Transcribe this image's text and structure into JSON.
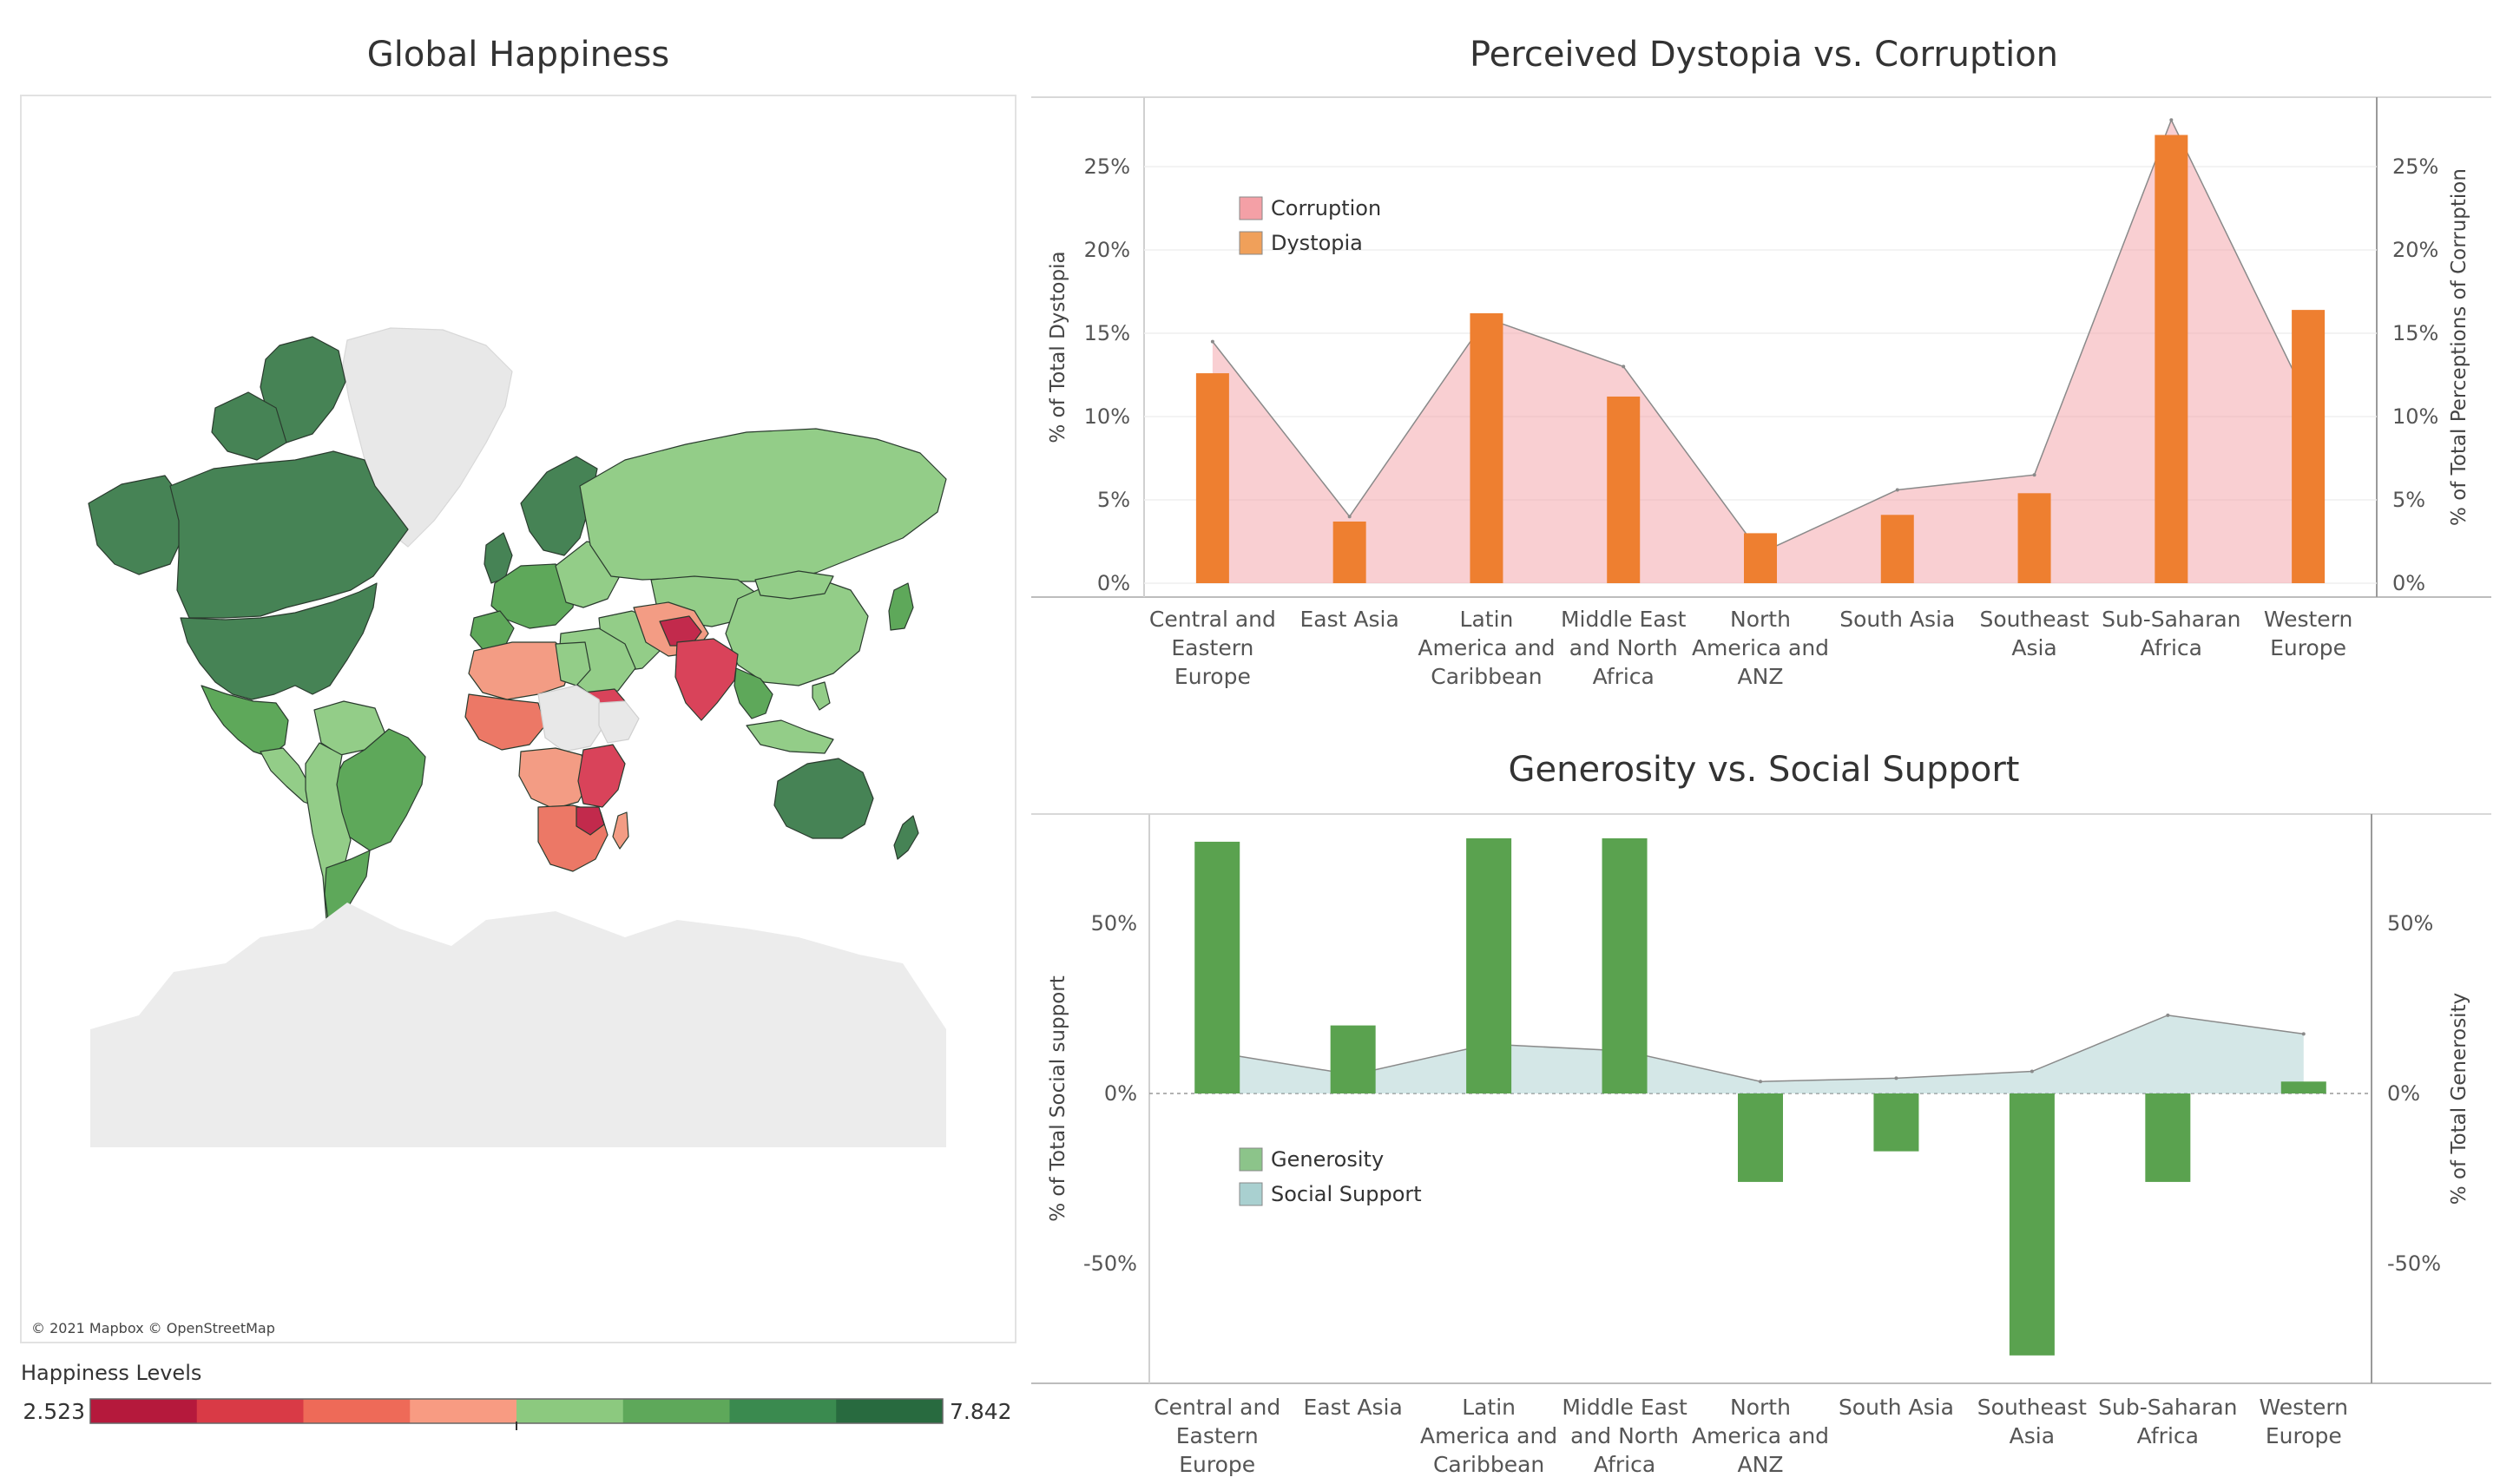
{
  "map": {
    "title": "Global Happiness",
    "attribution": "© 2021 Mapbox © OpenStreetMap",
    "legend": {
      "title": "Happiness Levels",
      "min_label": "2.523",
      "max_label": "7.842",
      "colors": [
        "#b5193c",
        "#d93a46",
        "#ee6a58",
        "#f89b82",
        "#8cc97f",
        "#5ea85a",
        "#3a8a4f",
        "#286a3f"
      ]
    },
    "colors": {
      "land_no_data": "#e8e8e8",
      "dark_green": "#468355",
      "mid_green": "#5ea85a",
      "light_green": "#93cd88",
      "salmon": "#f39c84",
      "coral": "#ec7866",
      "red": "#d9435a",
      "dark_red": "#c22a4c"
    }
  },
  "chart_data": [
    {
      "type": "bar",
      "title": "Perceived Dystopia vs. Corruption",
      "categories": [
        "Central and Eastern Europe",
        "East Asia",
        "Latin America and Caribbean",
        "Middle East and North Africa",
        "North America and ANZ",
        "South Asia",
        "Southeast Asia",
        "Sub-Saharan Africa",
        "Western Europe"
      ],
      "category_lines": [
        [
          "Central and",
          "Eastern",
          "Europe"
        ],
        [
          "East Asia"
        ],
        [
          "Latin",
          "America and",
          "Caribbean"
        ],
        [
          "Middle East",
          "and North",
          "Africa"
        ],
        [
          "North",
          "America and",
          "ANZ"
        ],
        [
          "South Asia"
        ],
        [
          "Southeast",
          "Asia"
        ],
        [
          "Sub-Saharan",
          "Africa"
        ],
        [
          "Western",
          "Europe"
        ]
      ],
      "series": [
        {
          "name": "Corruption",
          "type": "area",
          "axis": "right",
          "color": "#f4a0a6",
          "values": [
            14.5,
            4.0,
            15.9,
            13.0,
            1.8,
            5.6,
            6.5,
            27.8,
            10.9
          ]
        },
        {
          "name": "Dystopia",
          "type": "bar",
          "axis": "left",
          "color": "#f0a05a",
          "bar_color": "#ee7f30",
          "values": [
            12.6,
            3.7,
            16.2,
            11.2,
            3.0,
            4.1,
            5.4,
            26.9,
            16.4
          ]
        }
      ],
      "ylabel": "% of Total Dystopia",
      "y2label": "% of Total Perceptions of Corruption",
      "ylim": [
        -0.8,
        29
      ],
      "y2lim": [
        -0.8,
        29
      ],
      "yticks": [
        0,
        5,
        10,
        15,
        20,
        25
      ],
      "ytick_labels": [
        "0%",
        "5%",
        "10%",
        "15%",
        "20%",
        "25%"
      ],
      "y2ticks": [
        0,
        5,
        10,
        15,
        20,
        25
      ],
      "y2tick_labels": [
        "0%",
        "5%",
        "10%",
        "15%",
        "20%",
        "25%"
      ],
      "grid": true,
      "legend_position": "top-left"
    },
    {
      "type": "bar",
      "title": "Generosity vs. Social Support",
      "categories": [
        "Central and Eastern Europe",
        "East Asia",
        "Latin America and Caribbean",
        "Middle East and North Africa",
        "North America and ANZ",
        "South Asia",
        "Southeast Asia",
        "Sub-Saharan Africa",
        "Western Europe"
      ],
      "category_lines": [
        [
          "Central and",
          "Eastern",
          "Europe"
        ],
        [
          "East Asia"
        ],
        [
          "Latin",
          "America and",
          "Caribbean"
        ],
        [
          "Middle East",
          "and North",
          "Africa"
        ],
        [
          "North",
          "America and",
          "ANZ"
        ],
        [
          "South Asia"
        ],
        [
          "Southeast",
          "Asia"
        ],
        [
          "Sub-Saharan",
          "Africa"
        ],
        [
          "Western",
          "Europe"
        ]
      ],
      "series": [
        {
          "name": "Generosity",
          "type": "bar",
          "axis": "right",
          "color": "#8cc48a",
          "bar_color": "#5aa24f",
          "values": [
            74,
            20,
            75,
            75,
            -26,
            -17,
            -77,
            -26,
            3.5
          ]
        },
        {
          "name": "Social Support",
          "type": "area",
          "axis": "left",
          "color": "#a9d0d0",
          "values": [
            12,
            5.5,
            14.5,
            12.5,
            3.5,
            4.5,
            6.5,
            23,
            17.5
          ]
        }
      ],
      "ylabel": "% of Total Social support",
      "y2label": "% of Total Generosity",
      "ylim": [
        -85,
        82
      ],
      "y2lim": [
        -85,
        82
      ],
      "yticks": [
        -50,
        0,
        50
      ],
      "ytick_labels": [
        "-50%",
        "0%",
        "50%"
      ],
      "y2ticks": [
        -50,
        0,
        50
      ],
      "y2tick_labels": [
        "-50%",
        "0%",
        "50%"
      ],
      "grid": false,
      "legend_position": "bottom-left"
    }
  ]
}
